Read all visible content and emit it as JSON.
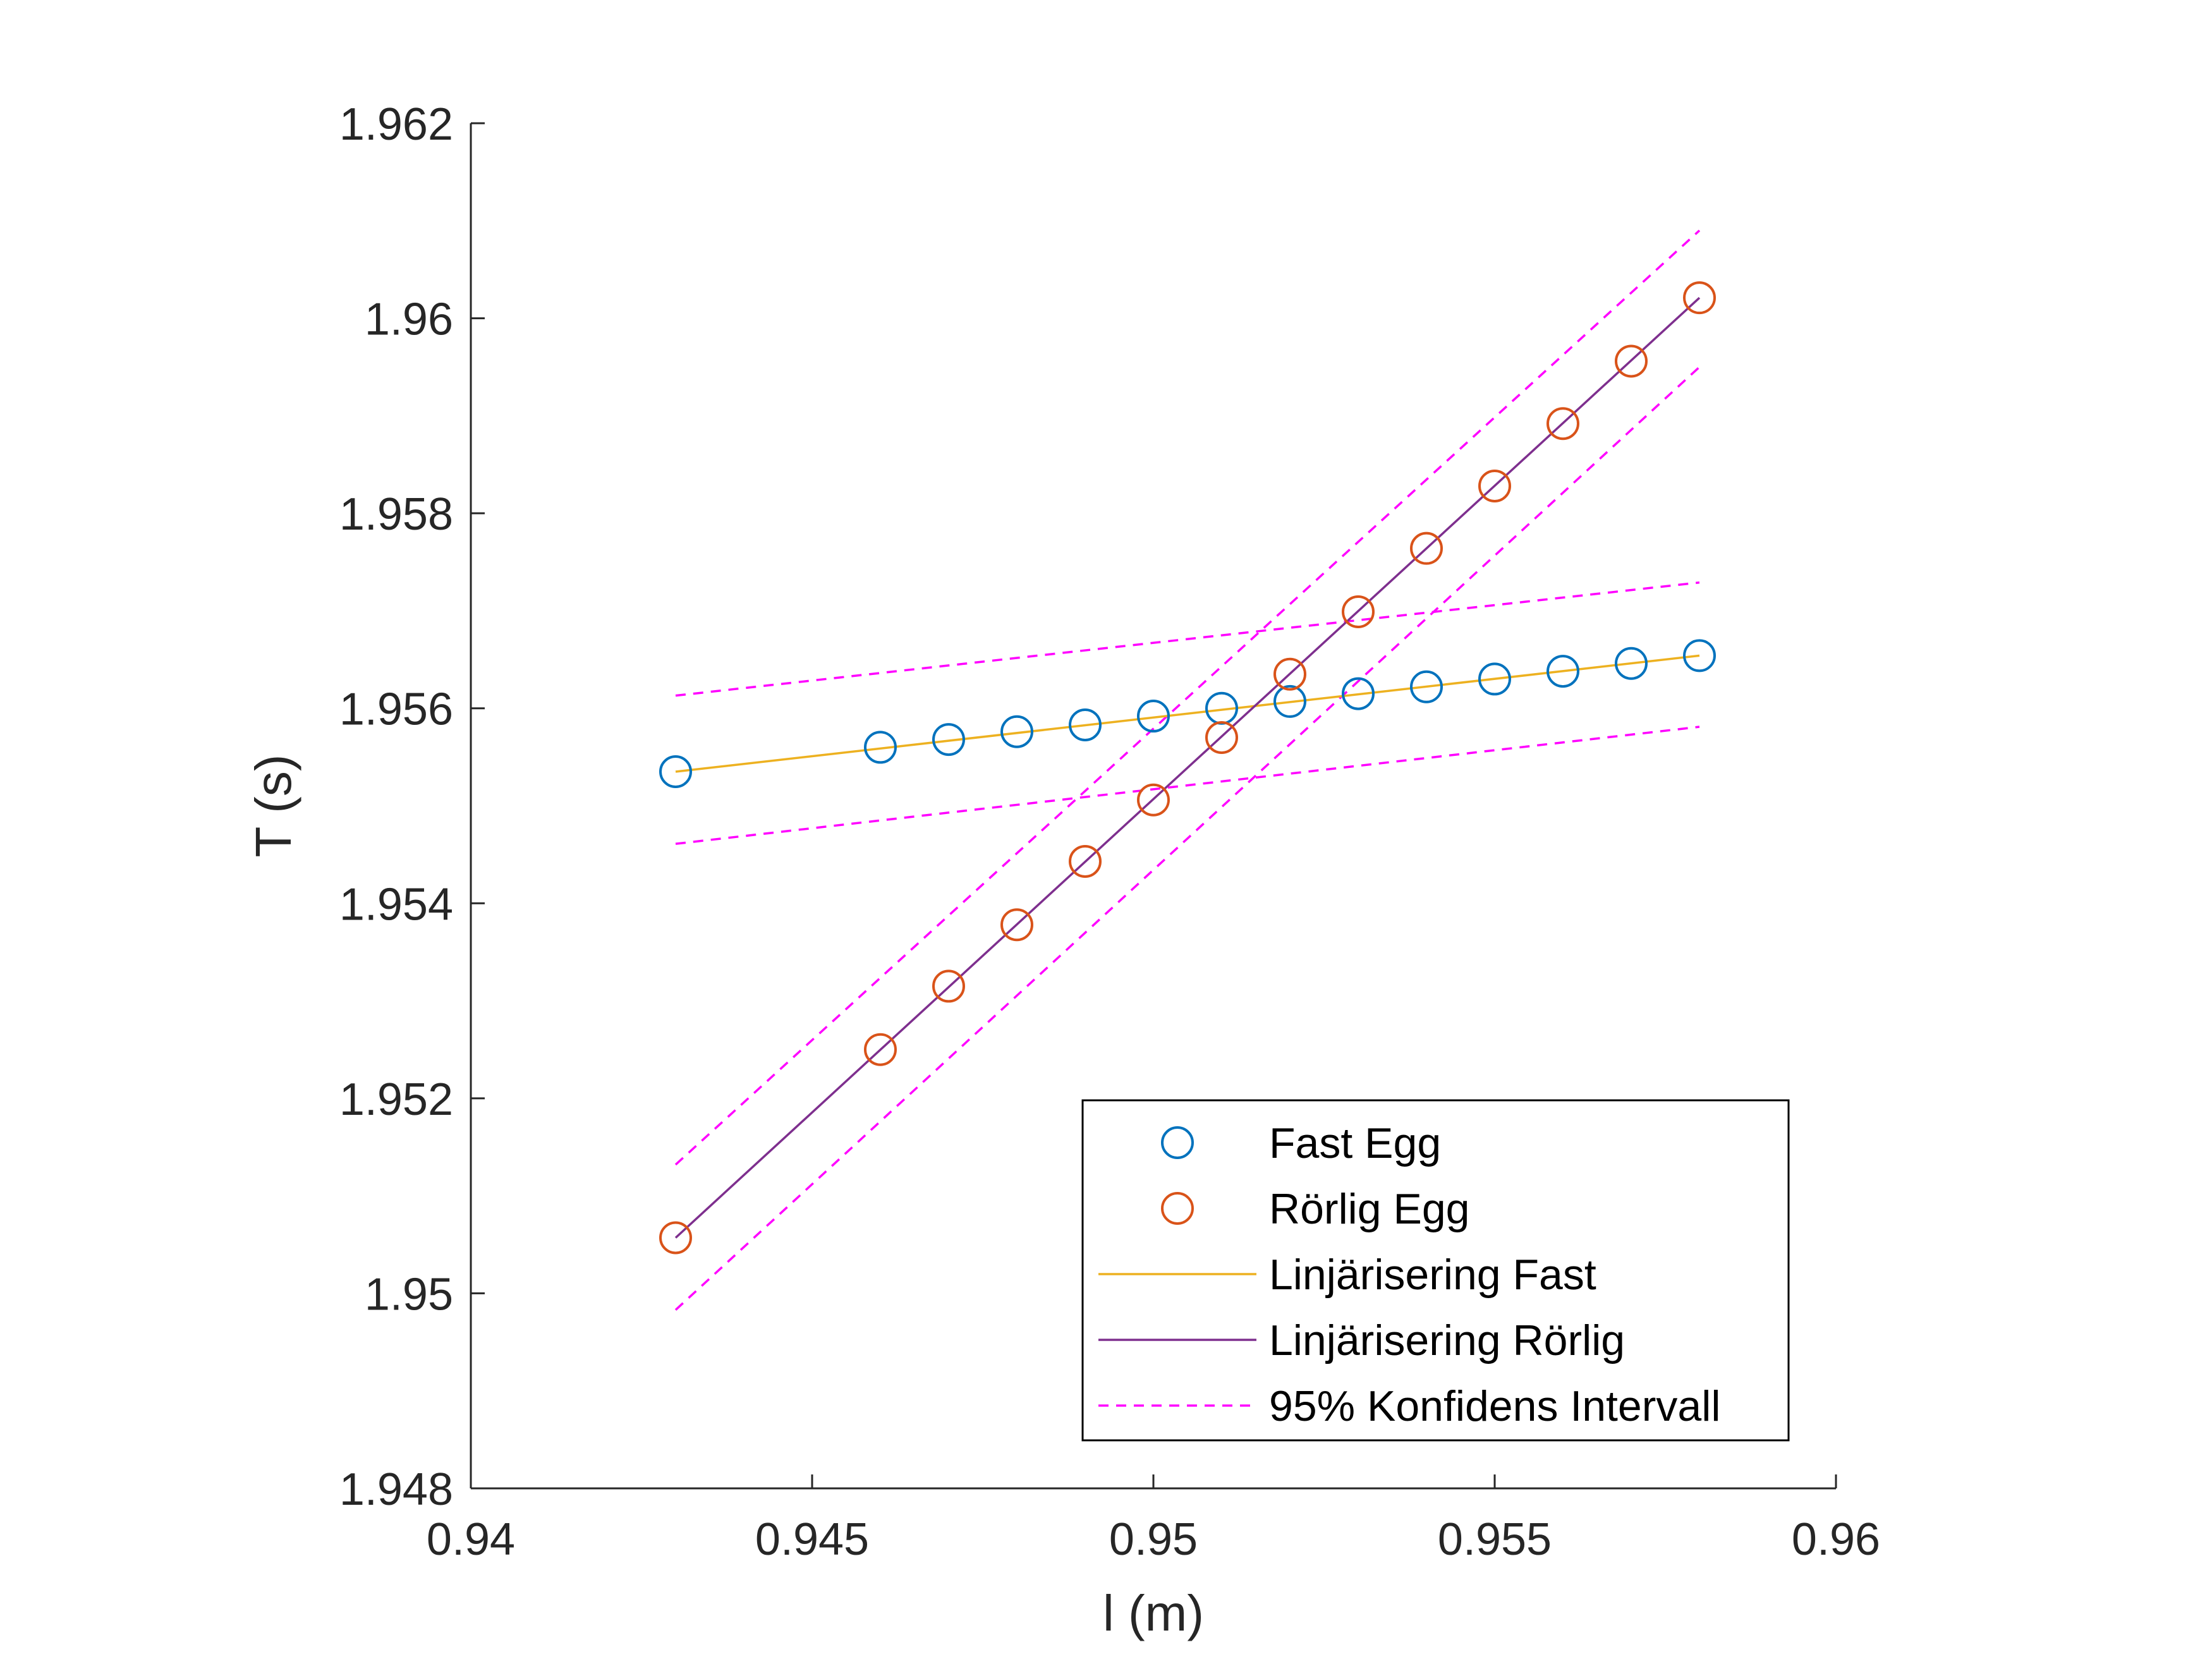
{
  "chart_data": {
    "type": "scatter",
    "title": "",
    "xlabel": "l (m)",
    "ylabel": "T (s)",
    "xlim": [
      0.94,
      0.96
    ],
    "ylim": [
      1.948,
      1.962
    ],
    "xticks": [
      "0.94",
      "0.945",
      "0.95",
      "0.955",
      "0.96"
    ],
    "yticks": [
      "1.948",
      "1.95",
      "1.952",
      "1.954",
      "1.956",
      "1.958",
      "1.96",
      "1.962"
    ],
    "grid": false,
    "legend_position": "bottom-right",
    "series": [
      {
        "name": "Fast Egg",
        "kind": "markers",
        "marker": "circle",
        "color": "#0072BD",
        "x": [
          0.943,
          0.946,
          0.947,
          0.948,
          0.949,
          0.95,
          0.951,
          0.952,
          0.953,
          0.954,
          0.955,
          0.956,
          0.957,
          0.958
        ],
        "y": [
          1.95535,
          1.9556,
          1.95568,
          1.95576,
          1.95583,
          1.95592,
          1.956,
          1.95607,
          1.95615,
          1.95622,
          1.9563,
          1.95638,
          1.95646,
          1.95654
        ]
      },
      {
        "name": "Rörlig Egg",
        "kind": "markers",
        "marker": "circle",
        "color": "#D95319",
        "x": [
          0.943,
          0.946,
          0.947,
          0.948,
          0.949,
          0.95,
          0.951,
          0.952,
          0.953,
          0.954,
          0.955,
          0.956,
          0.957,
          0.958
        ],
        "y": [
          1.95057,
          1.9525,
          1.95315,
          1.95378,
          1.95443,
          1.95506,
          1.9557,
          1.95635,
          1.95699,
          1.95764,
          1.95828,
          1.95892,
          1.95956,
          1.96021
        ]
      },
      {
        "name": "Linjärisering Fast",
        "kind": "line",
        "color": "#EDB120",
        "x": [
          0.943,
          0.958
        ],
        "y": [
          1.95535,
          1.95654
        ]
      },
      {
        "name": "Linjärisering Rörlig",
        "kind": "line",
        "color": "#7E2F8E",
        "x": [
          0.943,
          0.958
        ],
        "y": [
          1.95057,
          1.96021
        ]
      },
      {
        "name": "95% Konfidens Intervall",
        "kind": "dashed",
        "color": "#FF00FF",
        "lines": [
          {
            "x": [
              0.943,
              0.958
            ],
            "y": [
              1.95613,
              1.95729
            ]
          },
          {
            "x": [
              0.943,
              0.958
            ],
            "y": [
              1.95461,
              1.95581
            ]
          },
          {
            "x": [
              0.943,
              0.958
            ],
            "y": [
              1.95132,
              1.9609
            ]
          },
          {
            "x": [
              0.943,
              0.958
            ],
            "y": [
              1.94983,
              1.9595
            ]
          }
        ]
      }
    ]
  }
}
